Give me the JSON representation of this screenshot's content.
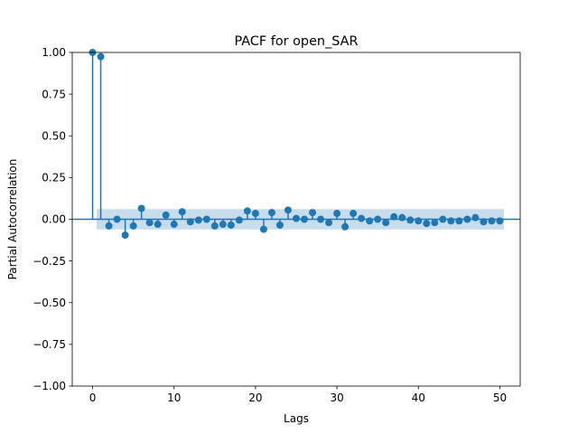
{
  "chart_data": {
    "type": "stem",
    "title": "PACF for open_SAR",
    "xlabel": "Lags",
    "ylabel": "Partial Autocorrelation",
    "xlim": [
      -2.5,
      52.5
    ],
    "ylim": [
      -1.0,
      1.0
    ],
    "xticks": [
      0,
      10,
      20,
      30,
      40,
      50
    ],
    "yticks": [
      -1.0,
      -0.75,
      -0.5,
      -0.25,
      0.0,
      0.25,
      0.5,
      0.75,
      1.0
    ],
    "ytick_labels": [
      "−1.00",
      "−0.75",
      "−0.50",
      "−0.25",
      "0.00",
      "0.25",
      "0.50",
      "0.75",
      "1.00"
    ],
    "xtick_labels": [
      "0",
      "10",
      "20",
      "30",
      "40",
      "50"
    ],
    "confidence_band": [
      -0.061,
      0.061
    ],
    "grid": false,
    "colors": {
      "series": "#1f77b4",
      "band": "#1f77b4"
    },
    "lags": [
      0,
      1,
      2,
      3,
      4,
      5,
      6,
      7,
      8,
      9,
      10,
      11,
      12,
      13,
      14,
      15,
      16,
      17,
      18,
      19,
      20,
      21,
      22,
      23,
      24,
      25,
      26,
      27,
      28,
      29,
      30,
      31,
      32,
      33,
      34,
      35,
      36,
      37,
      38,
      39,
      40,
      41,
      42,
      43,
      44,
      45,
      46,
      47,
      48,
      49,
      50
    ],
    "values": [
      1.0,
      0.975,
      -0.04,
      0.0,
      -0.095,
      -0.04,
      0.065,
      -0.02,
      -0.03,
      0.025,
      -0.03,
      0.045,
      -0.015,
      -0.005,
      0.0,
      -0.04,
      -0.03,
      -0.035,
      -0.005,
      0.05,
      0.035,
      -0.06,
      0.04,
      -0.035,
      0.055,
      0.005,
      0.0,
      0.04,
      0.0,
      -0.02,
      0.035,
      -0.045,
      0.035,
      0.005,
      -0.01,
      0.0,
      -0.02,
      0.015,
      0.01,
      -0.005,
      -0.01,
      -0.025,
      -0.02,
      0.0,
      -0.01,
      -0.01,
      0.0,
      0.01,
      -0.015,
      -0.01,
      -0.01
    ]
  }
}
